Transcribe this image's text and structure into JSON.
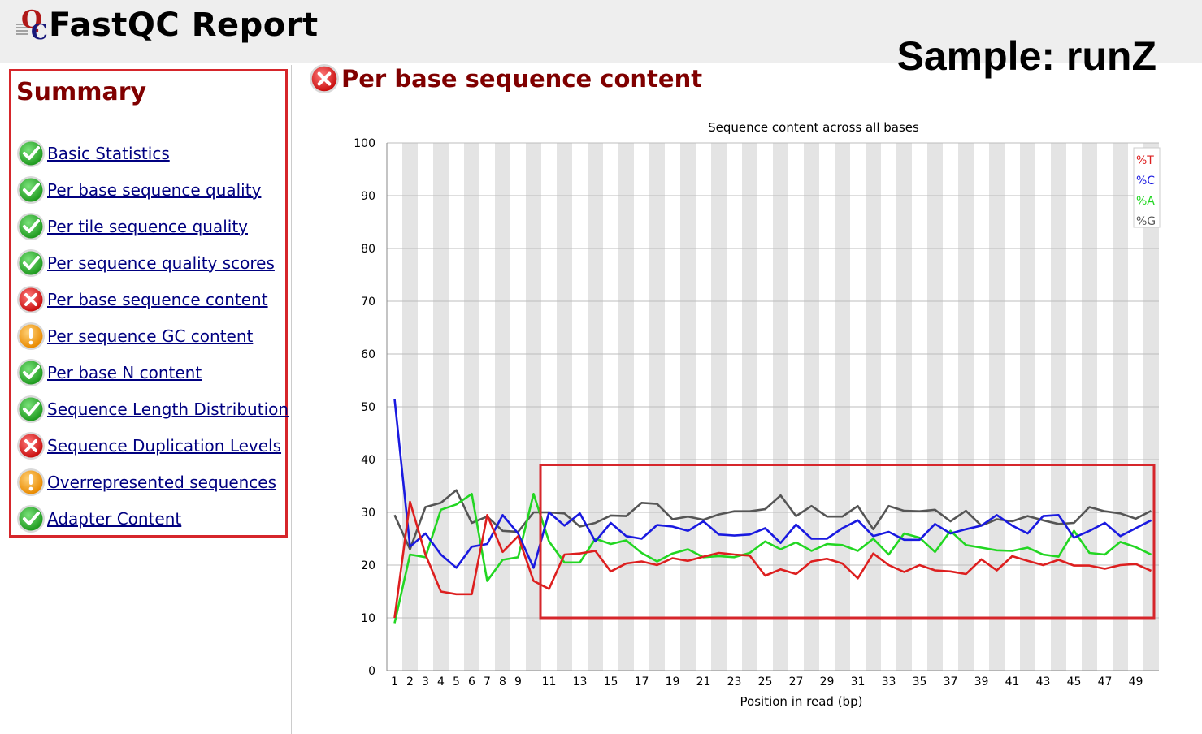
{
  "header": {
    "app_title": "FastQC Report",
    "logo_icon": "fastqc-logo-icon",
    "sample_label": "Sample: runZ"
  },
  "summary": {
    "title": "Summary",
    "items": [
      {
        "label": "Basic Statistics",
        "status": "pass"
      },
      {
        "label": "Per base sequence quality",
        "status": "pass"
      },
      {
        "label": "Per tile sequence quality",
        "status": "pass"
      },
      {
        "label": "Per sequence quality scores",
        "status": "pass"
      },
      {
        "label": "Per base sequence content",
        "status": "fail"
      },
      {
        "label": "Per sequence GC content",
        "status": "warn"
      },
      {
        "label": "Per base N content",
        "status": "pass"
      },
      {
        "label": "Sequence Length Distribution",
        "status": "pass"
      },
      {
        "label": "Sequence Duplication Levels",
        "status": "fail"
      },
      {
        "label": "Overrepresented sequences",
        "status": "warn"
      },
      {
        "label": "Adapter Content",
        "status": "pass"
      }
    ]
  },
  "section": {
    "title": "Per base sequence content",
    "status": "fail"
  },
  "colors": {
    "T": "#dd1f1f",
    "C": "#1a1ae0",
    "A": "#22d622",
    "G": "#555555",
    "highlight": "#d6262b",
    "stripe": "#e4e4e4"
  },
  "chart_data": {
    "type": "line",
    "title": "Sequence content across all bases",
    "xlabel": "Position in read (bp)",
    "ylabel": "",
    "ylim": [
      0,
      100
    ],
    "yticks": [
      0,
      10,
      20,
      30,
      40,
      50,
      60,
      70,
      80,
      90,
      100
    ],
    "x": [
      1,
      2,
      3,
      4,
      5,
      6,
      7,
      8,
      9,
      10,
      11,
      12,
      13,
      14,
      15,
      16,
      17,
      18,
      19,
      20,
      21,
      22,
      23,
      24,
      25,
      26,
      27,
      28,
      29,
      30,
      31,
      32,
      33,
      34,
      35,
      36,
      37,
      38,
      39,
      40,
      41,
      42,
      43,
      44,
      45,
      46,
      47,
      48,
      49,
      50
    ],
    "xtick_labels": [
      "1",
      "2",
      "3",
      "4",
      "5",
      "6",
      "7",
      "8",
      "9",
      "11",
      "13",
      "15",
      "17",
      "19",
      "21",
      "23",
      "25",
      "27",
      "29",
      "31",
      "33",
      "35",
      "37",
      "39",
      "41",
      "43",
      "45",
      "47",
      "49"
    ],
    "xtick_positions": [
      1,
      2,
      3,
      4,
      5,
      6,
      7,
      8,
      9,
      11,
      13,
      15,
      17,
      19,
      21,
      23,
      25,
      27,
      29,
      31,
      33,
      35,
      37,
      39,
      41,
      43,
      45,
      47,
      49
    ],
    "legend": [
      "%T",
      "%C",
      "%A",
      "%G"
    ],
    "legend_position": "top-right",
    "series": [
      {
        "name": "%T",
        "values": [
          10,
          32,
          22,
          15,
          14.5,
          14.5,
          29.5,
          22.5,
          25.5,
          17,
          15.5,
          22,
          22.2,
          22.7,
          18.8,
          20.3,
          20.7,
          20,
          21.3,
          20.8,
          21.6,
          22.3,
          22,
          21.8,
          18,
          19.2,
          18.3,
          20.7,
          21.2,
          20.3,
          17.5,
          22.2,
          20,
          18.7,
          20,
          19,
          18.8,
          18.3,
          21.1,
          19,
          21.7,
          20.8,
          20,
          21,
          19.9,
          19.9,
          19.3,
          20,
          20.2,
          18.9
        ]
      },
      {
        "name": "%C",
        "values": [
          51.5,
          23.5,
          26,
          22,
          19.5,
          23.5,
          24,
          29.5,
          26,
          19.5,
          30,
          27.5,
          29.8,
          24.5,
          28,
          25.5,
          25,
          27.6,
          27.3,
          26.5,
          28.3,
          25.8,
          25.6,
          25.8,
          27,
          24.2,
          27.7,
          25,
          25,
          27,
          28.5,
          25.5,
          26.3,
          24.8,
          24.8,
          27.8,
          26,
          26.8,
          27.5,
          29.5,
          27.5,
          26,
          29.3,
          29.5,
          25.2,
          26.5,
          28,
          25.5,
          27,
          28.5
        ]
      },
      {
        "name": "%A",
        "values": [
          9,
          22,
          21.5,
          30.5,
          31.5,
          33.5,
          17,
          21,
          21.5,
          33.5,
          24.5,
          20.5,
          20.5,
          25,
          24,
          24.7,
          22.3,
          20.7,
          22.2,
          23,
          21.5,
          21.7,
          21.5,
          22.3,
          24.5,
          23,
          24.3,
          22.7,
          24,
          23.8,
          22.7,
          25,
          22,
          26,
          25.2,
          22.5,
          26.5,
          23.8,
          23.3,
          22.8,
          22.7,
          23.3,
          22,
          21.6,
          26.5,
          22.3,
          22,
          24.4,
          23.4,
          22
        ]
      },
      {
        "name": "%G",
        "values": [
          29.5,
          23,
          31,
          31.8,
          34.2,
          28,
          29.2,
          26.5,
          26.3,
          30,
          30,
          29.8,
          27.3,
          28,
          29.4,
          29.3,
          31.8,
          31.6,
          28.7,
          29.2,
          28.6,
          29.6,
          30.2,
          30.2,
          30.6,
          33.2,
          29.3,
          31.2,
          29.2,
          29.2,
          31.2,
          26.8,
          31.2,
          30.3,
          30.2,
          30.5,
          28.3,
          30.3,
          27.5,
          28.7,
          28.3,
          29.3,
          28.5,
          27.8,
          28,
          31,
          30.2,
          29.8,
          28.8,
          30.3
        ]
      }
    ]
  }
}
